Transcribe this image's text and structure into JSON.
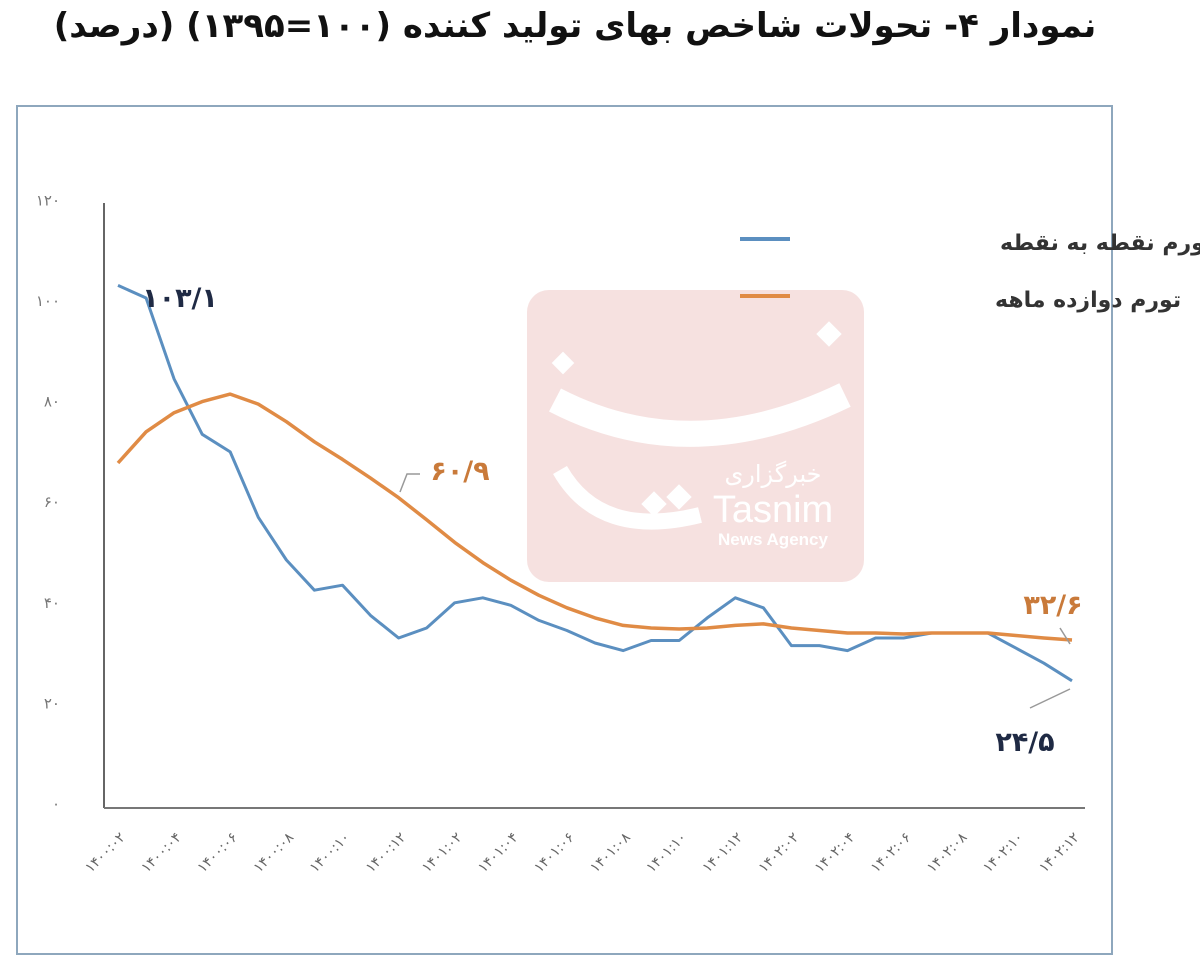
{
  "title": "نمودار ۴- تحولات شاخص بهای تولید کننده (۱۰۰=۱۳۹۵) (درصد)",
  "watermark": {
    "persian": "خبرگزاری",
    "brand": "Tasnim",
    "sub": "News Agency"
  },
  "colors": {
    "point_to_point": "#5b8fc0",
    "twelve_month": "#e08b45",
    "frame": "#8ea7bd",
    "watermark_bg": "#f3d7d5"
  },
  "chart_data": {
    "type": "line",
    "title": "نمودار ۴- تحولات شاخص بهای تولید کننده (۱۰۰=۱۳۹۵) (درصد)",
    "xlabel": "",
    "ylabel": "",
    "ylim": [
      0,
      120
    ],
    "yticks": [
      0,
      20,
      40,
      60,
      80,
      100,
      120
    ],
    "ytick_labels": [
      "۰",
      "۲۰",
      "۴۰",
      "۶۰",
      "۸۰",
      "۱۰۰",
      "۱۲۰"
    ],
    "xtick_labels": [
      "۱۴۰۰:۰۲",
      "۱۴۰۰:۰۴",
      "۱۴۰۰:۰۶",
      "۱۴۰۰:۰۸",
      "۱۴۰۰:۱۰",
      "۱۴۰۰:۱۲",
      "۱۴۰۱:۰۲",
      "۱۴۰۱:۰۴",
      "۱۴۰۱:۰۶",
      "۱۴۰۱:۰۸",
      "۱۴۰۱:۱۰",
      "۱۴۰۱:۱۲",
      "۱۴۰۲:۰۲",
      "۱۴۰۲:۰۴",
      "۱۴۰۲:۰۶",
      "۱۴۰۲:۰۸",
      "۱۴۰۲:۱۰",
      "۱۴۰۲:۱۲"
    ],
    "x": [
      "1400:02",
      "1400:03",
      "1400:04",
      "1400:05",
      "1400:06",
      "1400:07",
      "1400:08",
      "1400:09",
      "1400:10",
      "1400:11",
      "1400:12",
      "1401:01",
      "1401:02",
      "1401:03",
      "1401:04",
      "1401:05",
      "1401:06",
      "1401:07",
      "1401:08",
      "1401:09",
      "1401:10",
      "1401:11",
      "1401:12",
      "1402:01",
      "1402:02",
      "1402:03",
      "1402:04",
      "1402:05",
      "1402:06",
      "1402:07",
      "1402:08",
      "1402:09",
      "1402:10",
      "1402:11",
      "1402:12"
    ],
    "series": [
      {
        "name": "تورم نقطه به نقطه",
        "color": "#5b8fc0",
        "values": [
          103.1,
          100.6,
          84.5,
          73.5,
          70.0,
          57.0,
          48.5,
          42.5,
          43.5,
          37.5,
          33.0,
          35.0,
          40.0,
          41.0,
          39.5,
          36.5,
          34.5,
          32.0,
          30.5,
          32.5,
          32.5,
          37.0,
          41.0,
          39.0,
          31.5,
          31.5,
          30.5,
          33.0,
          33.0,
          34.0,
          34.0,
          34.0,
          31.0,
          28.0,
          24.5
        ]
      },
      {
        "name": "تورم دوازده ماهه",
        "color": "#e08b45",
        "values": [
          67.8,
          74.0,
          77.8,
          80.0,
          81.5,
          79.5,
          76.0,
          72.0,
          68.5,
          64.8,
          60.9,
          56.5,
          52.0,
          48.0,
          44.5,
          41.5,
          39.0,
          37.0,
          35.5,
          35.0,
          34.8,
          35.0,
          35.5,
          35.8,
          35.0,
          34.5,
          34.0,
          34.0,
          33.8,
          34.0,
          34.0,
          34.0,
          33.5,
          33.0,
          32.6
        ]
      }
    ],
    "legend": {
      "position": "top-right",
      "entries": [
        "تورم نقطه به نقطه",
        "تورم دوازده ماهه"
      ]
    },
    "annotations": [
      {
        "text": "۱۰۳/۱",
        "series": "تورم نقطه به نقطه",
        "x": "1400:02",
        "value": 103.1
      },
      {
        "text": "۶۰/۹",
        "series": "تورم دوازده ماهه",
        "x": "1400:12",
        "value": 60.9
      },
      {
        "text": "۳۲/۶",
        "series": "تورم دوازده ماهه",
        "x": "1402:12",
        "value": 32.6
      },
      {
        "text": "۲۴/۵",
        "series": "تورم نقطه به نقطه",
        "x": "1402:12",
        "value": 24.5
      }
    ],
    "grid": false
  }
}
